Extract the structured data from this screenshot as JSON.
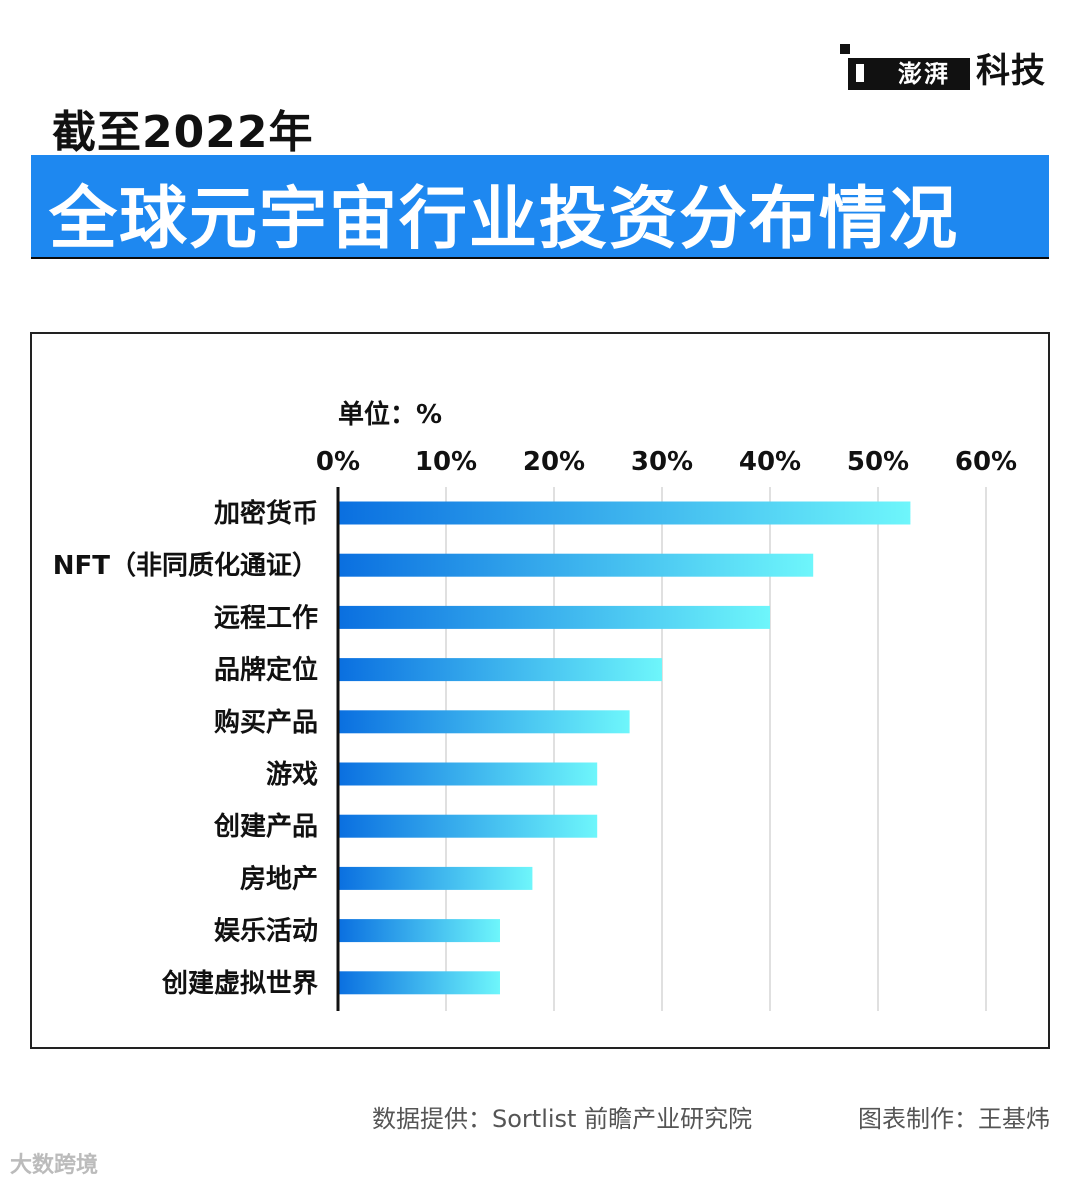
{
  "logo": {
    "brand": "澎湃",
    "text": "科技"
  },
  "headline": {
    "small": "截至2022年",
    "big": "全球元宇宙行业投资分布情况"
  },
  "unit_label": "单位：%",
  "chart_data": {
    "type": "bar",
    "orientation": "horizontal",
    "title": "全球元宇宙行业投资分布情况",
    "xlim": [
      0,
      60
    ],
    "x_ticks": [
      "0%",
      "10%",
      "20%",
      "30%",
      "40%",
      "50%",
      "60%"
    ],
    "grid": true,
    "categories": [
      "加密货币",
      "NFT（非同质化通证）",
      "远程工作",
      "品牌定位",
      "购买产品",
      "游戏",
      "创建产品",
      "房地产",
      "娱乐活动",
      "创建虚拟世界"
    ],
    "values": [
      53,
      44,
      40,
      30,
      27,
      24,
      24,
      18,
      15,
      15
    ],
    "colors": {
      "bar_start": "#0a6fe0",
      "bar_end": "#6ef6fb",
      "grid": "#d6d6d6",
      "axis": "#111111"
    }
  },
  "footer": {
    "source": "数据提供：Sortlist 前瞻产业研究院",
    "credit": "图表制作：王基炜",
    "watermark": "大数跨境"
  }
}
